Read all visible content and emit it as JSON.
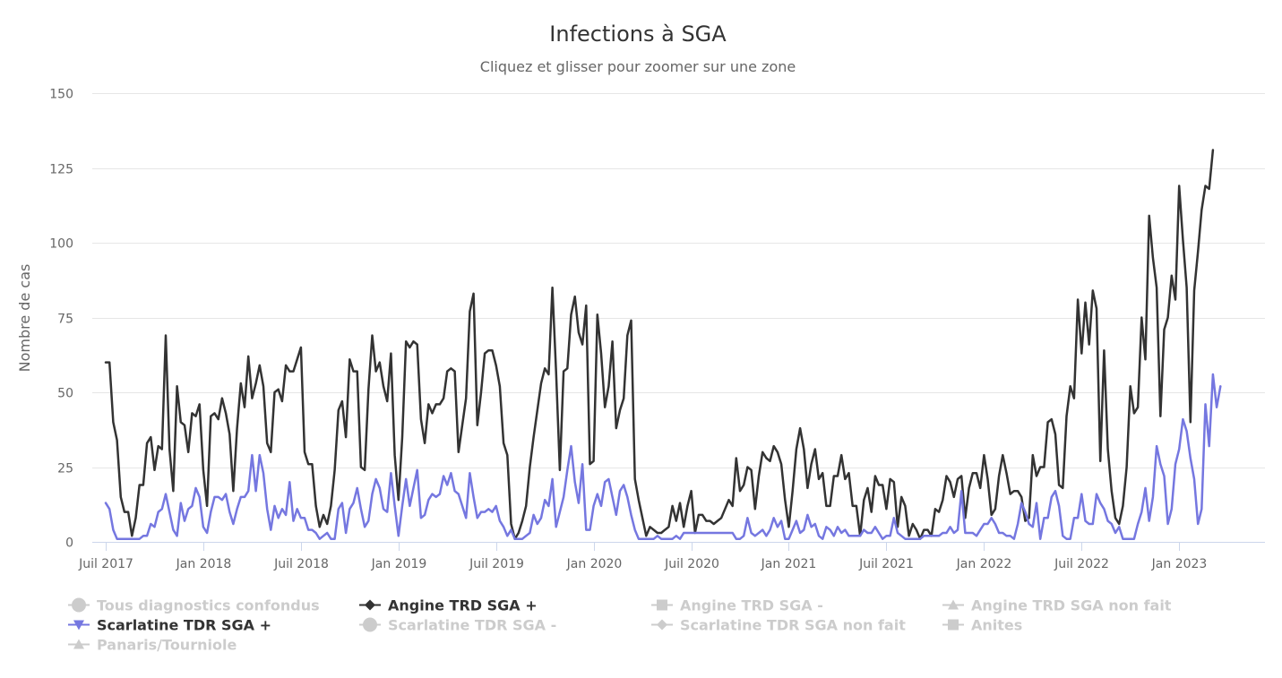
{
  "chart_data": {
    "type": "line",
    "title": "Infections à SGA",
    "subtitle": "Cliquez et glisser pour zoomer sur une zone",
    "ylabel": "Nombre de cas",
    "xlabel": "",
    "ylim": [
      0,
      150
    ],
    "yticks": [
      0,
      25,
      50,
      75,
      100,
      125,
      150
    ],
    "x_range": [
      0,
      306
    ],
    "xticks": [
      {
        "week": 0,
        "label": "Juil 2017"
      },
      {
        "week": 26,
        "label": "Jan 2018"
      },
      {
        "week": 52,
        "label": "Juil 2018"
      },
      {
        "week": 78,
        "label": "Jan 2019"
      },
      {
        "week": 104,
        "label": "Juil 2019"
      },
      {
        "week": 130,
        "label": "Jan 2020"
      },
      {
        "week": 156,
        "label": "Juil 2020"
      },
      {
        "week": 182,
        "label": "Jan 2021"
      },
      {
        "week": 208,
        "label": "Juil 2021"
      },
      {
        "week": 234,
        "label": "Jan 2022"
      },
      {
        "week": 260,
        "label": "Juil 2022"
      },
      {
        "week": 286,
        "label": "Jan 2023"
      }
    ],
    "series": [
      {
        "name": "Angine TRD SGA +",
        "color": "#333333",
        "visible": true,
        "marker": "diamond",
        "values": [
          60,
          60,
          40,
          34,
          15,
          10,
          10,
          2,
          8,
          19,
          19,
          33,
          35,
          24,
          32,
          31,
          69,
          31,
          17,
          52,
          40,
          39,
          30,
          43,
          42,
          46,
          24,
          12,
          42,
          43,
          41,
          48,
          43,
          36,
          17,
          38,
          53,
          45,
          62,
          48,
          53,
          59,
          52,
          33,
          30,
          50,
          51,
          47,
          59,
          57,
          57,
          61,
          65,
          30,
          26,
          26,
          12,
          5,
          9,
          6,
          12,
          24,
          44,
          47,
          35,
          61,
          57,
          57,
          25,
          24,
          51,
          69,
          57,
          60,
          52,
          47,
          63,
          29,
          14,
          35,
          67,
          65,
          67,
          66,
          41,
          33,
          46,
          43,
          46,
          46,
          48,
          57,
          58,
          57,
          30,
          39,
          48,
          77,
          83,
          39,
          50,
          63,
          64,
          64,
          59,
          52,
          33,
          29,
          6,
          1,
          3,
          7,
          12,
          25,
          35,
          44,
          53,
          58,
          56,
          85,
          57,
          24,
          57,
          58,
          76,
          82,
          70,
          66,
          79,
          26,
          27,
          76,
          63,
          45,
          52,
          67,
          38,
          44,
          48,
          69,
          74,
          21,
          14,
          8,
          2,
          5,
          4,
          3,
          3,
          4,
          5,
          12,
          7,
          13,
          5,
          12,
          17,
          3,
          9,
          9,
          7,
          7,
          6,
          7,
          8,
          11,
          14,
          12,
          28,
          17,
          19,
          25,
          24,
          11,
          22,
          30,
          28,
          27,
          32,
          30,
          26,
          14,
          5,
          17,
          31,
          38,
          31,
          18,
          26,
          31,
          21,
          23,
          12,
          12,
          22,
          22,
          29,
          21,
          23,
          12,
          12,
          2,
          14,
          18,
          10,
          22,
          19,
          19,
          11,
          21,
          20,
          5,
          15,
          12,
          2,
          6,
          4,
          1,
          4,
          4,
          2,
          11,
          10,
          14,
          22,
          20,
          15,
          21,
          22,
          8,
          18,
          23,
          23,
          18,
          29,
          21,
          9,
          11,
          22,
          29,
          23,
          16,
          17,
          17,
          15,
          7,
          8,
          29,
          22,
          25,
          25,
          40,
          41,
          36,
          19,
          18,
          42,
          52,
          48,
          81,
          63,
          80,
          66,
          84,
          78,
          27,
          64,
          31,
          17,
          8,
          6,
          12,
          25,
          52,
          43,
          45,
          75,
          61,
          109,
          95,
          85,
          42,
          71,
          75,
          89,
          81,
          119,
          101,
          85,
          40,
          84,
          97,
          111,
          119,
          118,
          131
        ]
      },
      {
        "name": "Scarlatine TDR SGA +",
        "color": "#7577e0",
        "visible": true,
        "marker": "triangle-down",
        "values": [
          13,
          11,
          4,
          1,
          1,
          1,
          1,
          1,
          1,
          1,
          2,
          2,
          6,
          5,
          10,
          11,
          16,
          10,
          4,
          2,
          13,
          7,
          11,
          12,
          18,
          15,
          5,
          3,
          10,
          15,
          15,
          14,
          16,
          10,
          6,
          11,
          15,
          15,
          17,
          29,
          17,
          29,
          23,
          11,
          4,
          12,
          8,
          11,
          9,
          20,
          7,
          11,
          8,
          8,
          4,
          4,
          3,
          1,
          2,
          3,
          1,
          1,
          11,
          13,
          3,
          11,
          13,
          18,
          11,
          5,
          7,
          16,
          21,
          18,
          11,
          10,
          23,
          12,
          2,
          12,
          21,
          12,
          18,
          24,
          8,
          9,
          14,
          16,
          15,
          16,
          22,
          19,
          23,
          17,
          16,
          12,
          8,
          23,
          15,
          8,
          10,
          10,
          11,
          10,
          12,
          7,
          5,
          2,
          4,
          1,
          1,
          1,
          2,
          3,
          9,
          6,
          8,
          14,
          12,
          21,
          5,
          10,
          15,
          24,
          32,
          20,
          13,
          26,
          4,
          4,
          12,
          16,
          12,
          20,
          21,
          15,
          9,
          17,
          19,
          15,
          9,
          4,
          1,
          1,
          1,
          1,
          1,
          2,
          1,
          1,
          1,
          1,
          2,
          1,
          3,
          3,
          3,
          3,
          3,
          3,
          3,
          3,
          3,
          3,
          3,
          3,
          3,
          3,
          1,
          1,
          2,
          8,
          3,
          2,
          3,
          4,
          2,
          4,
          8,
          5,
          7,
          1,
          1,
          4,
          7,
          3,
          4,
          9,
          5,
          6,
          2,
          1,
          5,
          4,
          2,
          5,
          3,
          4,
          2,
          2,
          2,
          2,
          4,
          3,
          3,
          5,
          3,
          1,
          2,
          2,
          8,
          3,
          2,
          1,
          1,
          1,
          1,
          1,
          2,
          2,
          2,
          2,
          2,
          3,
          3,
          5,
          3,
          4,
          17,
          3,
          3,
          3,
          2,
          4,
          6,
          6,
          8,
          6,
          3,
          3,
          2,
          2,
          1,
          6,
          13,
          10,
          6,
          5,
          13,
          1,
          8,
          8,
          15,
          17,
          12,
          2,
          1,
          1,
          8,
          8,
          16,
          7,
          6,
          6,
          16,
          13,
          11,
          7,
          6,
          3,
          5,
          1,
          1,
          1,
          1,
          6,
          10,
          18,
          7,
          15,
          32,
          26,
          22,
          6,
          11,
          26,
          31,
          41,
          37,
          28,
          21,
          6,
          11,
          46,
          32,
          56,
          45,
          52
        ]
      },
      {
        "name": "Tous diagnostics confondus",
        "visible": false,
        "marker": "circle"
      },
      {
        "name": "Angine TRD SGA -",
        "visible": false,
        "marker": "square"
      },
      {
        "name": "Angine TRD SGA non fait",
        "visible": false,
        "marker": "triangle"
      },
      {
        "name": "Scarlatine TDR SGA -",
        "visible": false,
        "marker": "circle"
      },
      {
        "name": "Scarlatine TDR SGA non fait",
        "visible": false,
        "marker": "diamond"
      },
      {
        "name": "Anites",
        "visible": false,
        "marker": "square"
      },
      {
        "name": "Panaris/Tourniole",
        "visible": false,
        "marker": "triangle"
      }
    ],
    "grid": true,
    "legend_position": "bottom"
  },
  "legend": {
    "items": [
      {
        "label": "Tous diagnostics confondus",
        "marker": "circle",
        "active": false
      },
      {
        "label": "Angine TRD SGA +",
        "marker": "diamond",
        "active": true,
        "color": "#333333"
      },
      {
        "label": "Angine TRD SGA -",
        "marker": "square",
        "active": false
      },
      {
        "label": "Angine TRD SGA non fait",
        "marker": "triangle",
        "active": false
      },
      {
        "label": "Scarlatine TDR SGA +",
        "marker": "triangle-down",
        "active": true,
        "color": "#7577e0"
      },
      {
        "label": "Scarlatine TDR SGA -",
        "marker": "circle",
        "active": false
      },
      {
        "label": "Scarlatine TDR SGA non fait",
        "marker": "diamond",
        "active": false
      },
      {
        "label": "Anites",
        "marker": "square",
        "active": false
      },
      {
        "label": "Panaris/Tourniole",
        "marker": "triangle",
        "active": false
      }
    ],
    "inactive_color": "#cccccc"
  },
  "colors": {
    "grid": "#e6e6e6",
    "axis": "#ccd6eb"
  }
}
